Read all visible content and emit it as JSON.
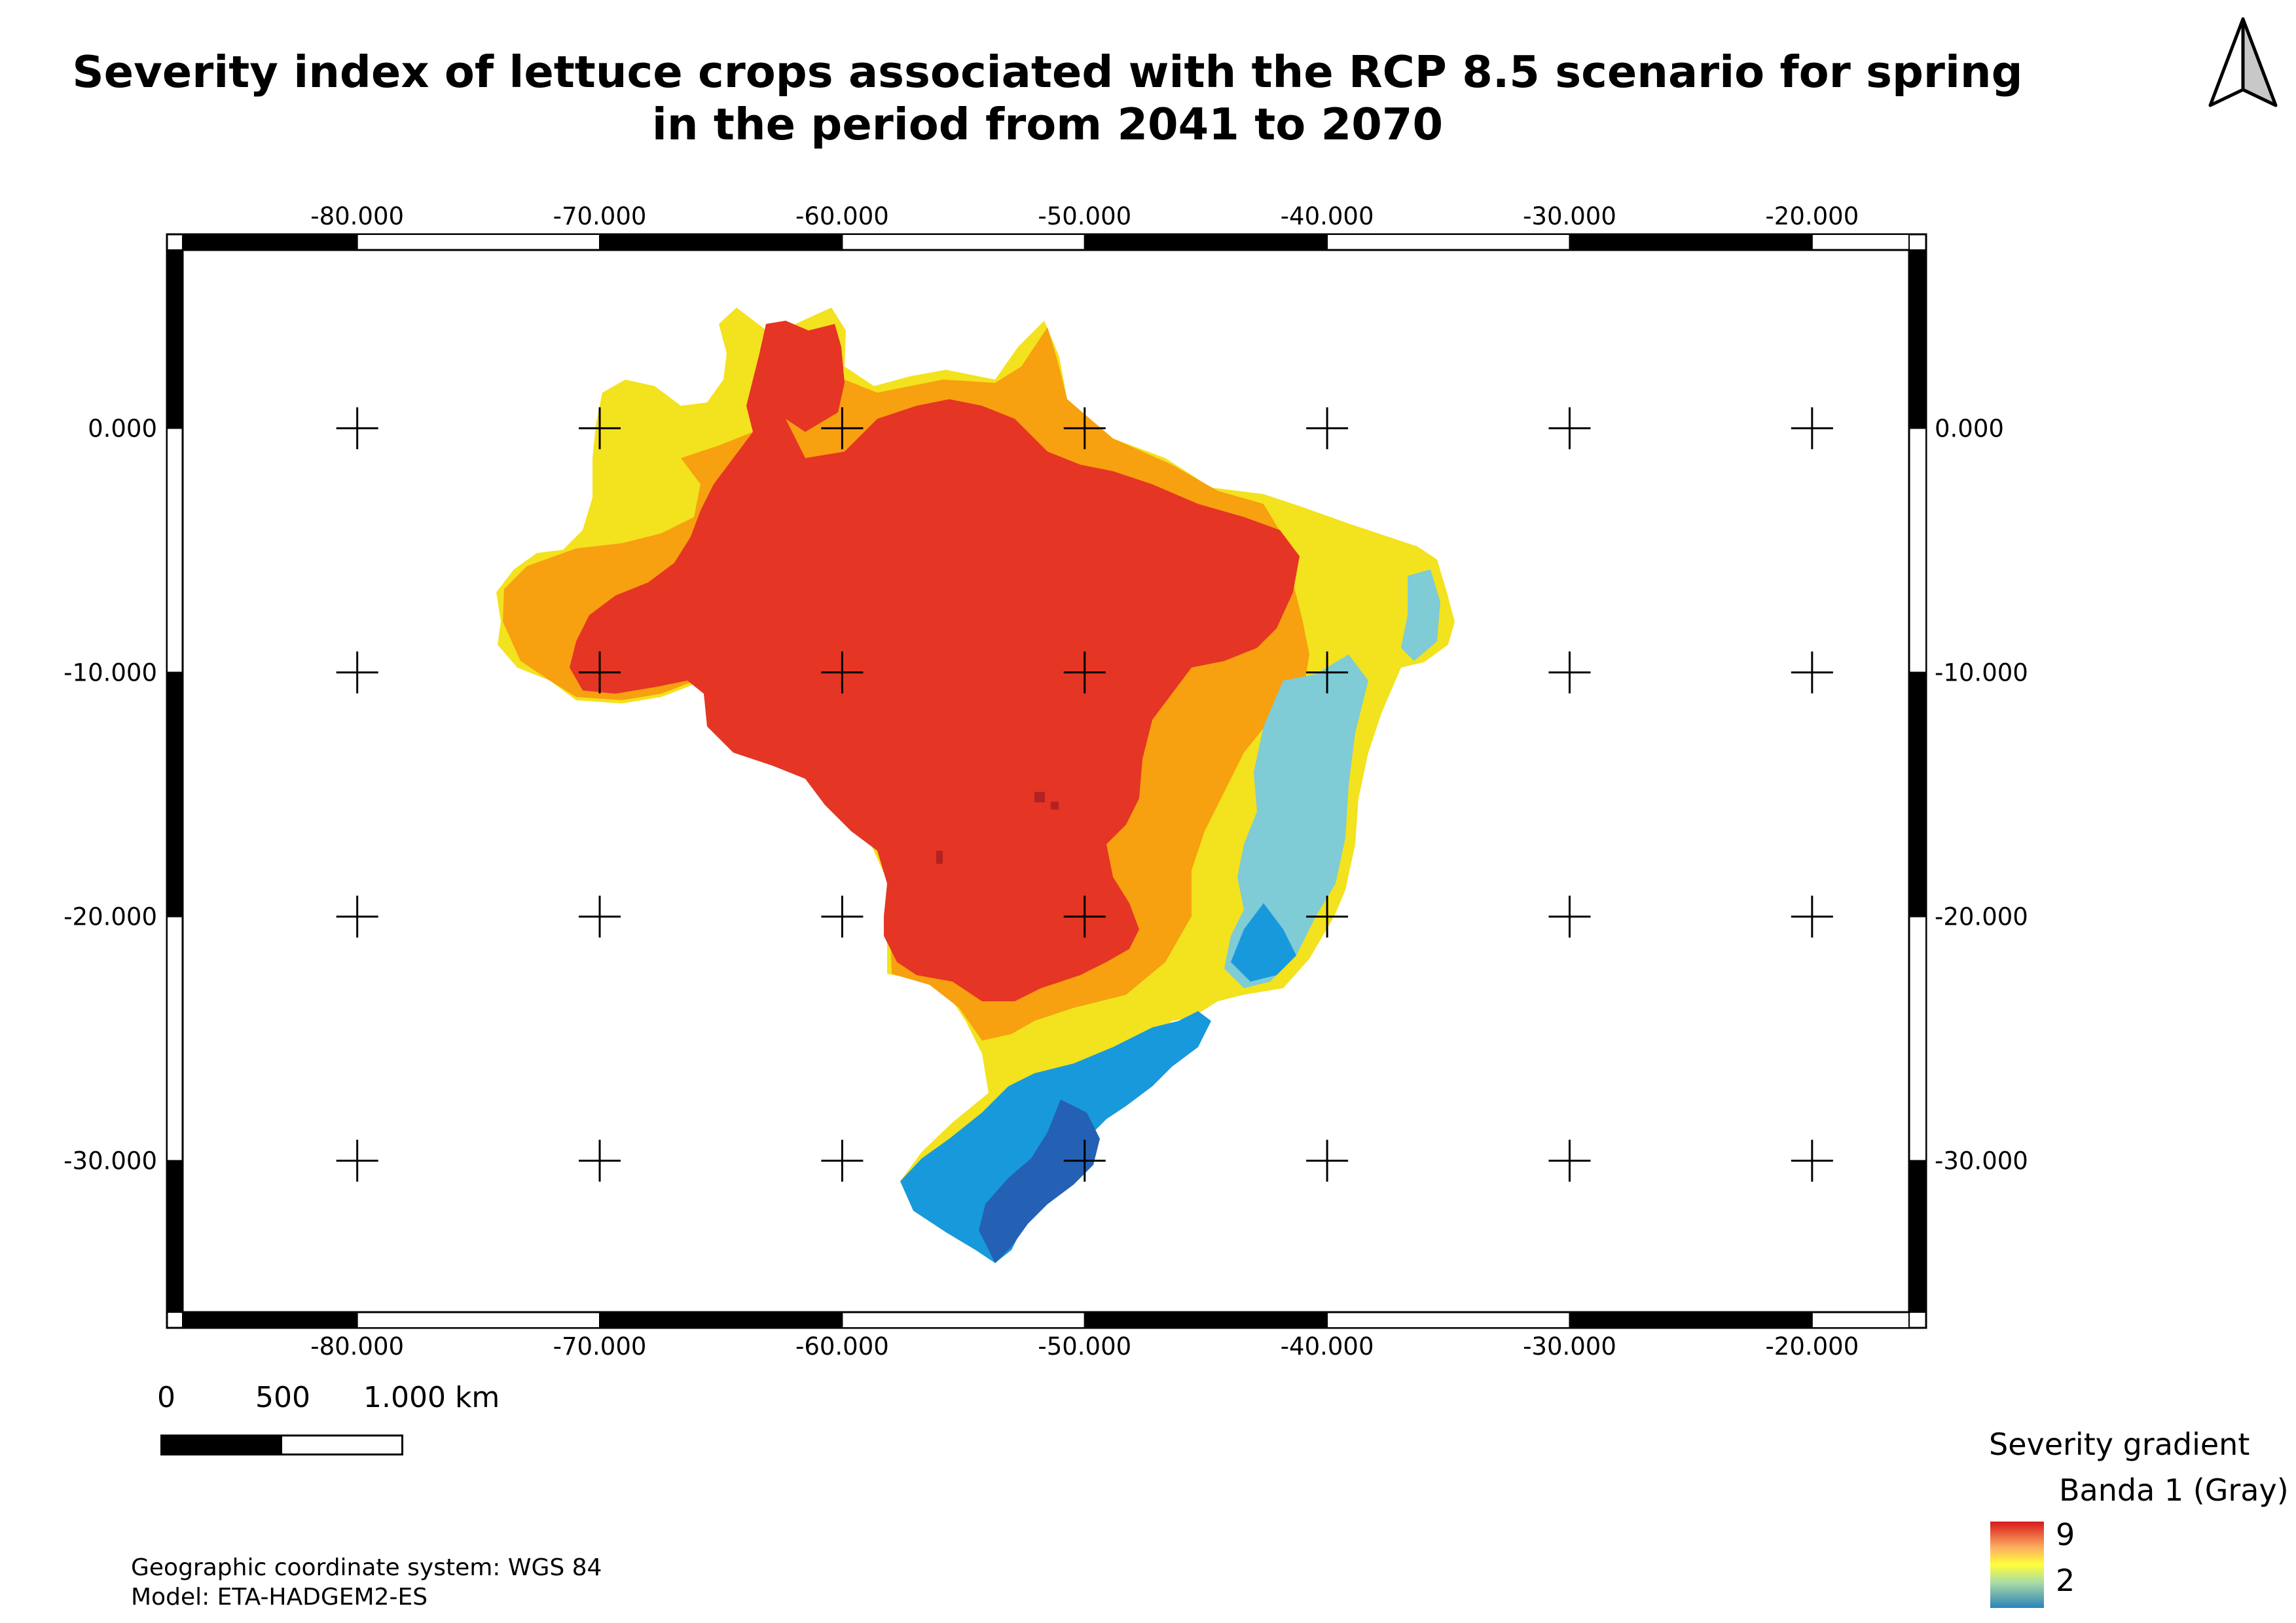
{
  "title": "Severity index of lettuce crops associated with the RCP 8.5 scenario for spring in the period from 2041 to 2070",
  "north_arrow": {
    "icon": "north-arrow-icon"
  },
  "map": {
    "x_ticks": [
      "-80.000",
      "-70.000",
      "-60.000",
      "-50.000",
      "-40.000",
      "-30.000",
      "-20.000"
    ],
    "y_ticks": [
      "0.000",
      "-10.000",
      "-20.000",
      "-30.000"
    ],
    "x_tick_values": [
      -80,
      -70,
      -60,
      -50,
      -40,
      -30,
      -20
    ],
    "y_tick_values": [
      0,
      -10,
      -20,
      -30
    ],
    "lon_range": [
      -87.2,
      -16.0
    ],
    "lat_range": [
      7.3,
      -36.2
    ],
    "grid": "crosses",
    "colors": {
      "very_high": "#e53524",
      "high": "#f7a010",
      "medium": "#f3e21e",
      "low_mid": "#7fcbd6",
      "low": "#1899dc",
      "very_low": "#2461b5",
      "peak": "#b22222"
    }
  },
  "scale_bar": {
    "labels": [
      "0",
      "500",
      "1.000 km"
    ]
  },
  "footnotes": {
    "crs": "Geographic coordinate system: WGS 84",
    "model": "Model: ETA-HADGEM2-ES"
  },
  "legend": {
    "title": "Severity gradient",
    "band": "Banda 1 (Gray)",
    "max": "9",
    "min": "2",
    "ramp_colors": [
      "#d7191c",
      "#fdae61",
      "#ffff3a",
      "#abdda4",
      "#2b83ba"
    ]
  }
}
